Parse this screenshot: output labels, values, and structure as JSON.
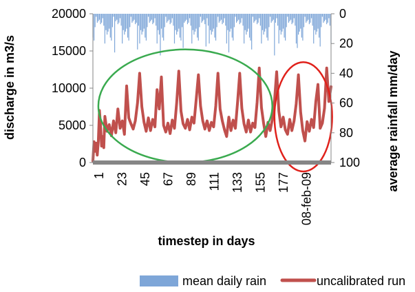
{
  "chart_data": {
    "type": "combo",
    "title": "",
    "xlabel": "timestep in days",
    "ylabel_left": "discharge in m3/s",
    "ylabel_right": "average rainfall mm/day",
    "x_tick_labels": [
      "1",
      "23",
      "45",
      "67",
      "89",
      "111",
      "133",
      "155",
      "177",
      "08-feb-09"
    ],
    "x_range": [
      1,
      220
    ],
    "ylim_left": [
      0,
      20000
    ],
    "y_ticks_left": [
      "0",
      "5000",
      "10000",
      "15000",
      "20000"
    ],
    "ylim_right": [
      100,
      0
    ],
    "y_ticks_right": [
      "0",
      "20",
      "40",
      "60",
      "80",
      "100"
    ],
    "legend_placement": "bottom",
    "colors": {
      "rain": "#7ea6d8",
      "discharge": "#c0504d",
      "green_ellipse": "#3aaa4f",
      "red_ellipse": "#e0211b",
      "axis": "#868686"
    },
    "series": [
      {
        "name": "mean daily rain",
        "kind": "bar",
        "axis": "right",
        "pattern": {
          "base_values": [
            10,
            4,
            14,
            6,
            20,
            9,
            3,
            16,
            7,
            12,
            5,
            11,
            2,
            8,
            18,
            6
          ],
          "spike_values": [
            22,
            26,
            24,
            28,
            23
          ],
          "spike_period": 21
        }
      },
      {
        "name": "uncalibrated run",
        "kind": "line",
        "axis": "left",
        "x": [
          1,
          2,
          3,
          4,
          5,
          6,
          7,
          8,
          9,
          10,
          11,
          12,
          14,
          16,
          18,
          20,
          22,
          24,
          26,
          28,
          30,
          32,
          34,
          36,
          38,
          40,
          42,
          44,
          46,
          48,
          50,
          52,
          54,
          56,
          58,
          60,
          62,
          64,
          66,
          68,
          70,
          72,
          74,
          76,
          78,
          80,
          82,
          84,
          86,
          88,
          90,
          92,
          94,
          96,
          98,
          100,
          102,
          104,
          106,
          108,
          110,
          112,
          114,
          116,
          118,
          120,
          122,
          124,
          126,
          128,
          130,
          132,
          134,
          136,
          138,
          140,
          142,
          144,
          146,
          148,
          150,
          152,
          154,
          156,
          158,
          160,
          162,
          164,
          166,
          168,
          170,
          172,
          174,
          176,
          178,
          180,
          182,
          184,
          186,
          188,
          190,
          192,
          194,
          196,
          198,
          200,
          202,
          204,
          206,
          208,
          210,
          212,
          214,
          216,
          218,
          220
        ],
        "values": [
          200,
          2800,
          1500,
          2600,
          1000,
          2900,
          7000,
          5000,
          2200,
          3500,
          2000,
          6200,
          4200,
          5100,
          3600,
          5600,
          4000,
          7200,
          4600,
          5600,
          3800,
          10300,
          6000,
          5200,
          4500,
          5600,
          8000,
          12000,
          7500,
          5400,
          4200,
          6000,
          4300,
          5800,
          4800,
          9800,
          7200,
          11500,
          5000,
          4100,
          5300,
          3900,
          5700,
          4600,
          8000,
          12300,
          6900,
          5200,
          4600,
          5800,
          4400,
          6100,
          5300,
          8500,
          11800,
          7600,
          5600,
          4500,
          5600,
          4300,
          5400,
          4800,
          7600,
          12000,
          7200,
          5600,
          4400,
          3500,
          6100,
          4300,
          5700,
          4600,
          8000,
          12000,
          7300,
          5200,
          4100,
          5700,
          4100,
          5300,
          4700,
          8100,
          12700,
          7400,
          5300,
          3500,
          5400,
          4300,
          5800,
          8200,
          12200,
          6900,
          4800,
          6100,
          4400,
          3800,
          5800,
          4300,
          5600,
          7900,
          11800,
          6800,
          4300,
          2900,
          5500,
          4200,
          5800,
          4700,
          8200,
          10500,
          4600,
          5300,
          7300,
          12700,
          8200,
          10200
        ]
      }
    ],
    "annotations": [
      {
        "shape": "ellipse",
        "color": "green",
        "x_range": [
          6,
          166
        ],
        "y_range_left": [
          0,
          15200
        ]
      },
      {
        "shape": "ellipse",
        "color": "red",
        "x_range": [
          168,
          221
        ],
        "y_range_left": [
          -1200,
          13500
        ]
      }
    ]
  },
  "legend": {
    "rain_label": "mean daily rain",
    "run_label": "uncalibrated run"
  }
}
